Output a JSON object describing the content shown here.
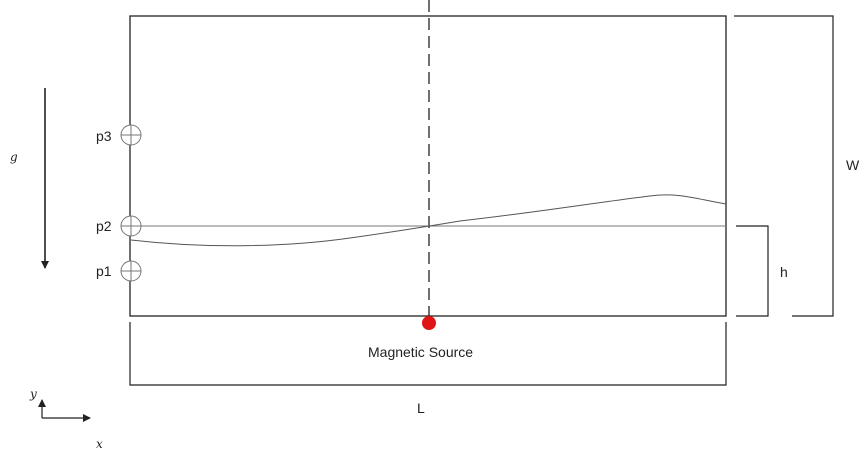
{
  "labels": {
    "gravity": "g",
    "width": "W",
    "height": "h",
    "length": "L",
    "source": "Magnetic Source",
    "axis_x": "x",
    "axis_y": "y"
  },
  "probes": [
    {
      "label": "p3"
    },
    {
      "label": "p2"
    },
    {
      "label": "p1"
    }
  ],
  "colors": {
    "line": "#222222",
    "thin_line": "#666666",
    "magnetic_source": "#e01414"
  }
}
